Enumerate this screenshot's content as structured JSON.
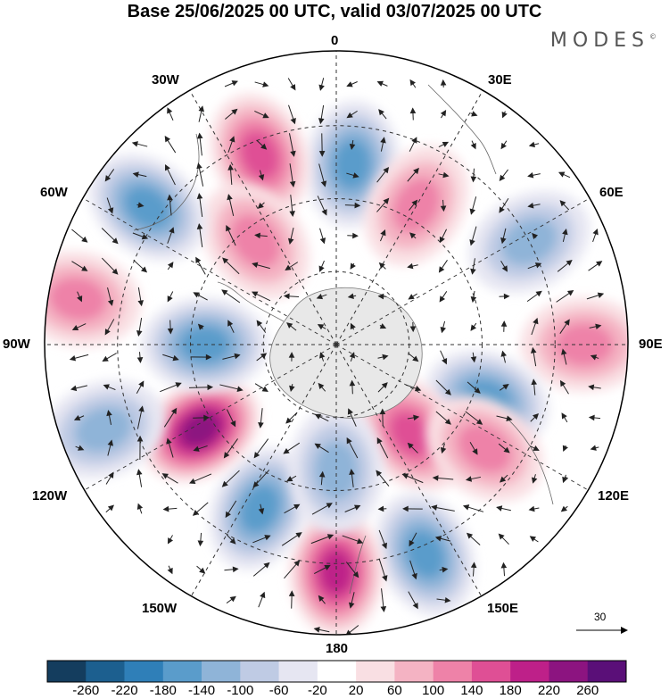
{
  "title": "Base 25/06/2025 00 UTC, valid 03/07/2025 00 UTC",
  "brand": "MODES",
  "brand_mark": "©",
  "longitude_labels": {
    "lon_0": "0",
    "lon_30e": "30E",
    "lon_60e": "60E",
    "lon_90e": "90E",
    "lon_120e": "120E",
    "lon_150e": "150E",
    "lon_180": "180",
    "lon_150w": "150W",
    "lon_120w": "120W",
    "lon_90w": "90W",
    "lon_60w": "60W",
    "lon_30w": "30W"
  },
  "reference_vector": {
    "label": "30"
  },
  "colorbar": {
    "labels": [
      "-260",
      "-220",
      "-180",
      "-140",
      "-100",
      "-60",
      "-20",
      "20",
      "60",
      "100",
      "140",
      "180",
      "220",
      "260"
    ],
    "colors": [
      "#143d5e",
      "#1c5f8f",
      "#2f7fb8",
      "#5a9ccb",
      "#8fb4d8",
      "#bfcbe4",
      "#e6e6f2",
      "#ffffff",
      "#f9dfe3",
      "#f4b3c3",
      "#ee82a8",
      "#df4f95",
      "#be2089",
      "#8c1480",
      "#5a0f78"
    ]
  },
  "anomaly_centres": [
    {
      "sign": "neg",
      "level": 4,
      "lon": 5,
      "colat": 0.62
    },
    {
      "sign": "pos",
      "level": 4,
      "lon": -22,
      "colat": 0.7
    },
    {
      "sign": "pos",
      "level": 3,
      "lon": -38,
      "colat": 0.45
    },
    {
      "sign": "neg",
      "level": 4,
      "lon": -54,
      "colat": 0.8
    },
    {
      "sign": "pos",
      "level": 3,
      "lon": 30,
      "colat": 0.55
    },
    {
      "sign": "neg",
      "level": 3,
      "lon": 62,
      "colat": 0.75
    },
    {
      "sign": "pos",
      "level": 3,
      "lon": 90,
      "colat": 0.85
    },
    {
      "sign": "neg",
      "level": 4,
      "lon": 110,
      "colat": 0.55
    },
    {
      "sign": "pos",
      "level": 4,
      "lon": 140,
      "colat": 0.4
    },
    {
      "sign": "pos",
      "level": 3,
      "lon": 125,
      "colat": 0.62
    },
    {
      "sign": "neg",
      "level": 4,
      "lon": 157,
      "colat": 0.78
    },
    {
      "sign": "pos",
      "level": 5,
      "lon": 180,
      "colat": 0.78
    },
    {
      "sign": "neg",
      "level": 4,
      "lon": -155,
      "colat": 0.62
    },
    {
      "sign": "neg",
      "level": 3,
      "lon": -180,
      "colat": 0.43
    },
    {
      "sign": "pos",
      "level": 6,
      "lon": -122,
      "colat": 0.55
    },
    {
      "sign": "neg",
      "level": 4,
      "lon": -90,
      "colat": 0.45
    },
    {
      "sign": "pos",
      "level": 3,
      "lon": -80,
      "colat": 0.9
    },
    {
      "sign": "neg",
      "level": 3,
      "lon": -110,
      "colat": 0.85
    }
  ]
}
